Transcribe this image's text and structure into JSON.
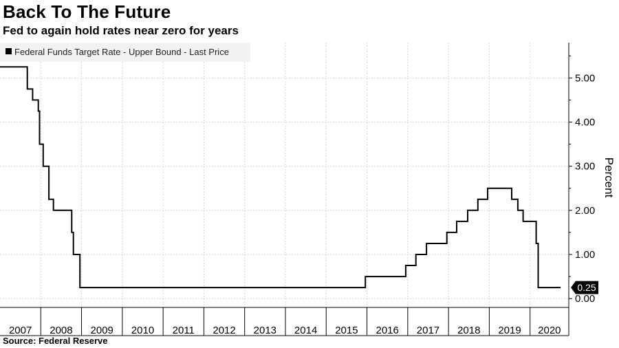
{
  "header": {
    "title": "Back To The Future",
    "subtitle": "Fed to again hold rates near zero for years"
  },
  "footer": {
    "source": "Source: Federal Reserve"
  },
  "chart_data": {
    "type": "line",
    "step": true,
    "title": "Back To The Future",
    "subtitle": "Fed to again hold rates near zero for years",
    "legend": "Federal Funds Target Rate - Upper Bound - Last Price",
    "legend_position": "top-left",
    "xlabel": "",
    "ylabel": "Percent",
    "ylim": [
      -0.2,
      5.8
    ],
    "yticks": [
      0.0,
      1.0,
      2.0,
      3.0,
      4.0,
      5.0
    ],
    "ytick_labels": [
      "0.00",
      "1.00",
      "2.00",
      "3.00",
      "4.00",
      "5.00"
    ],
    "xlim": [
      2007.0,
      2020.95
    ],
    "x_categories": [
      "2007",
      "2008",
      "2009",
      "2010",
      "2011",
      "2012",
      "2013",
      "2014",
      "2015",
      "2016",
      "2017",
      "2018",
      "2019",
      "2020"
    ],
    "grid": true,
    "last_value_label": "0.25",
    "series": [
      {
        "name": "Federal Funds Target Rate - Upper Bound - Last Price",
        "color": "#000000",
        "x": [
          2007.0,
          2007.55,
          2007.67,
          2007.8,
          2007.94,
          2007.97,
          2008.06,
          2008.2,
          2008.31,
          2008.76,
          2008.8,
          2008.96,
          2015.96,
          2016.95,
          2017.2,
          2017.46,
          2017.96,
          2018.2,
          2018.47,
          2018.72,
          2018.96,
          2019.55,
          2019.7,
          2019.83,
          2020.15,
          2020.2,
          2020.75
        ],
        "y": [
          5.25,
          5.25,
          4.75,
          4.5,
          4.25,
          3.5,
          3.0,
          2.25,
          2.0,
          1.5,
          1.0,
          0.25,
          0.5,
          0.75,
          1.0,
          1.25,
          1.5,
          1.75,
          2.0,
          2.25,
          2.5,
          2.25,
          2.0,
          1.75,
          1.25,
          0.25,
          0.25
        ]
      }
    ]
  }
}
